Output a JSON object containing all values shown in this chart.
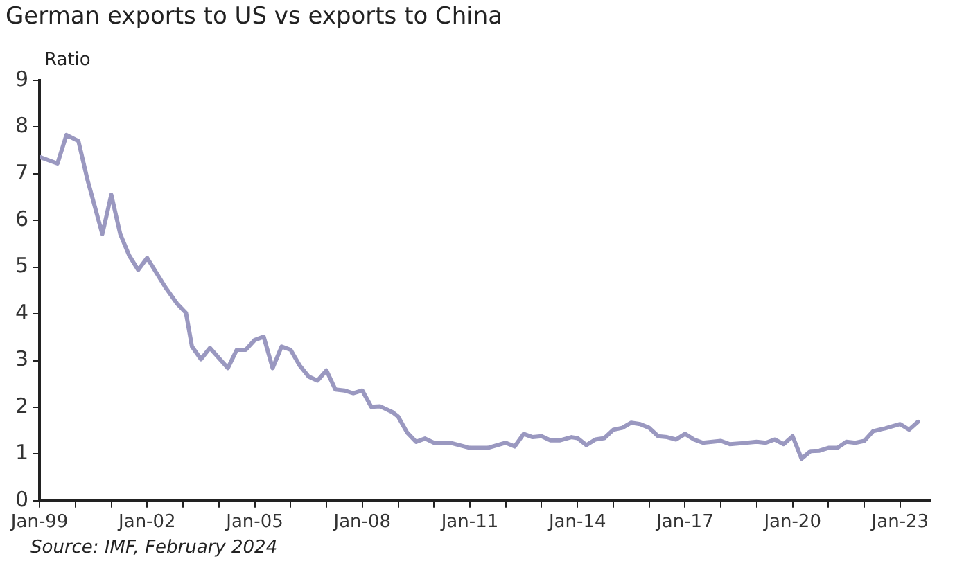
{
  "chart_data": {
    "type": "line",
    "title": "German exports to US vs exports to China",
    "ylabel": "Ratio",
    "annotations": [
      "Source: IMF, February 2024"
    ],
    "x": [
      "1999-01",
      "1999-07",
      "1999-10",
      "2000-02",
      "2000-05",
      "2000-10",
      "2001-01",
      "2001-04",
      "2001-07",
      "2001-10",
      "2002-01",
      "2002-07",
      "2002-11",
      "2003-02",
      "2003-04",
      "2003-07",
      "2003-10",
      "2004-04",
      "2004-07",
      "2004-10",
      "2005-01",
      "2005-04",
      "2005-07",
      "2005-10",
      "2006-01",
      "2006-04",
      "2006-07",
      "2006-10",
      "2007-01",
      "2007-04",
      "2007-07",
      "2007-10",
      "2008-01",
      "2008-04",
      "2008-07",
      "2008-11",
      "2009-01",
      "2009-04",
      "2009-07",
      "2009-10",
      "2010-01",
      "2010-07",
      "2011-01",
      "2011-07",
      "2012-01",
      "2012-04",
      "2012-07",
      "2012-10",
      "2013-01",
      "2013-04",
      "2013-07",
      "2013-11",
      "2014-01",
      "2014-04",
      "2014-07",
      "2014-10",
      "2015-01",
      "2015-04",
      "2015-07",
      "2015-10",
      "2016-01",
      "2016-04",
      "2016-07",
      "2016-10",
      "2017-01",
      "2017-04",
      "2017-07",
      "2018-01",
      "2018-04",
      "2018-08",
      "2019-01",
      "2019-04",
      "2019-07",
      "2019-10",
      "2020-01",
      "2020-04",
      "2020-07",
      "2020-10",
      "2021-01",
      "2021-04",
      "2021-07",
      "2021-10",
      "2022-01",
      "2022-04",
      "2022-08",
      "2023-01",
      "2023-04",
      "2023-07"
    ],
    "series": [
      {
        "color": "#9a98c0",
        "values": [
          7.36,
          7.22,
          7.83,
          7.7,
          6.88,
          5.71,
          6.55,
          5.71,
          5.25,
          4.94,
          5.2,
          4.58,
          4.22,
          4.02,
          3.3,
          3.03,
          3.27,
          2.84,
          3.23,
          3.23,
          3.44,
          3.51,
          2.84,
          3.3,
          3.23,
          2.9,
          2.66,
          2.57,
          2.79,
          2.38,
          2.36,
          2.3,
          2.36,
          2.01,
          2.02,
          1.9,
          1.8,
          1.46,
          1.26,
          1.33,
          1.24,
          1.23,
          1.13,
          1.13,
          1.24,
          1.16,
          1.43,
          1.36,
          1.38,
          1.29,
          1.29,
          1.36,
          1.34,
          1.19,
          1.31,
          1.34,
          1.52,
          1.56,
          1.67,
          1.64,
          1.56,
          1.38,
          1.36,
          1.31,
          1.43,
          1.31,
          1.24,
          1.28,
          1.21,
          1.23,
          1.26,
          1.24,
          1.31,
          1.21,
          1.38,
          0.9,
          1.06,
          1.07,
          1.13,
          1.13,
          1.26,
          1.24,
          1.28,
          1.49,
          1.55,
          1.64,
          1.52,
          1.69
        ]
      }
    ],
    "xlim": [
      "1999-01",
      "2023-11"
    ],
    "xticks": [
      {
        "value": "1999-01",
        "label": "Jan-99"
      },
      {
        "value": "2000-01",
        "label": null
      },
      {
        "value": "2001-01",
        "label": null
      },
      {
        "value": "2002-01",
        "label": "Jan-02"
      },
      {
        "value": "2003-01",
        "label": null
      },
      {
        "value": "2004-01",
        "label": null
      },
      {
        "value": "2005-01",
        "label": "Jan-05"
      },
      {
        "value": "2006-01",
        "label": null
      },
      {
        "value": "2007-01",
        "label": null
      },
      {
        "value": "2008-01",
        "label": "Jan-08"
      },
      {
        "value": "2009-01",
        "label": null
      },
      {
        "value": "2010-01",
        "label": null
      },
      {
        "value": "2011-01",
        "label": "Jan-11"
      },
      {
        "value": "2012-01",
        "label": null
      },
      {
        "value": "2013-01",
        "label": null
      },
      {
        "value": "2014-01",
        "label": "Jan-14"
      },
      {
        "value": "2015-01",
        "label": null
      },
      {
        "value": "2016-01",
        "label": null
      },
      {
        "value": "2017-01",
        "label": "Jan-17"
      },
      {
        "value": "2018-01",
        "label": null
      },
      {
        "value": "2019-01",
        "label": null
      },
      {
        "value": "2020-01",
        "label": "Jan-20"
      },
      {
        "value": "2021-01",
        "label": null
      },
      {
        "value": "2022-01",
        "label": null
      },
      {
        "value": "2023-01",
        "label": "Jan-23"
      }
    ],
    "ylim": [
      0,
      9
    ],
    "yticks": [
      0,
      1,
      2,
      3,
      4,
      5,
      6,
      7,
      8,
      9
    ],
    "grid": false,
    "legend": false,
    "marker": "none",
    "line_style": "solid"
  }
}
